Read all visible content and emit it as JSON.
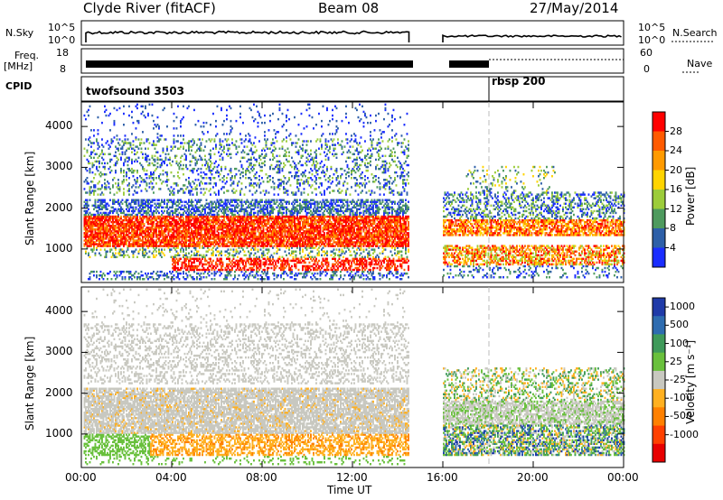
{
  "header": {
    "station": "Clyde River (fitACF)",
    "beam": "Beam 08",
    "date": "27/May/2014"
  },
  "panels": {
    "nsky_label": "N.Sky",
    "nsky_ticks": [
      "10^5",
      "10^0"
    ],
    "nsearch_label": "N.Search",
    "freq_label_line1": "Freq.",
    "freq_label_line2": "[MHz]",
    "freq_ticks": [
      "18",
      "8"
    ],
    "nave_label": "Nave",
    "nave_ticks": [
      "60",
      "0"
    ],
    "cpid_label": "CPID",
    "cpid_mode_1": "twofsound 3503",
    "cpid_mode_2": "rbsp 200"
  },
  "colorbars": {
    "power": {
      "label": "Power [dB]",
      "ticks": [
        "28",
        "24",
        "20",
        "16",
        "12",
        "8",
        "4"
      ],
      "colors": [
        "#ff0000",
        "#ff5a00",
        "#ff9a00",
        "#ffd400",
        "#9ccc3a",
        "#4e9a5e",
        "#2d5fa8",
        "#1a2dff"
      ]
    },
    "velocity": {
      "label": "Velocity [m s⁻¹]",
      "ticks": [
        "1000",
        "500",
        "100",
        "25",
        "-25",
        "-100",
        "-500",
        "-1000"
      ],
      "colors": [
        "#1f3aa8",
        "#2e6cb0",
        "#3f9a5a",
        "#69c03c",
        "#c8c8c0",
        "#ffb020",
        "#ff8000",
        "#ff4000",
        "#e80000"
      ]
    }
  },
  "chart_data": [
    {
      "type": "heatmap",
      "title": "",
      "xlabel": "",
      "ylabel": "Slant Range [km]",
      "xticks": [
        "00:00",
        "04:00",
        "08:00",
        "12:00",
        "16:00",
        "20:00",
        "00:00"
      ],
      "yticks": [
        "1000",
        "2000",
        "3000",
        "4000"
      ],
      "ylim": [
        180,
        4600
      ],
      "xlim_hours": [
        0,
        24
      ],
      "quantity": "Power [dB]",
      "scale_range": [
        0,
        32
      ],
      "data_gap_hours": [
        14.5,
        16.0
      ],
      "mode_change_hour": 18.0
    },
    {
      "type": "heatmap",
      "title": "",
      "xlabel": "Time UT",
      "ylabel": "Slant Range [km]",
      "xticks": [
        "00:00",
        "04:00",
        "08:00",
        "12:00",
        "16:00",
        "20:00",
        "00:00"
      ],
      "yticks": [
        "1000",
        "2000",
        "3000",
        "4000"
      ],
      "ylim": [
        180,
        4600
      ],
      "xlim_hours": [
        0,
        24
      ],
      "quantity": "Velocity [m s⁻¹]",
      "scale_range": [
        -1000,
        1000
      ],
      "data_gap_hours": [
        14.5,
        16.0
      ],
      "mode_change_hour": 18.0
    }
  ]
}
